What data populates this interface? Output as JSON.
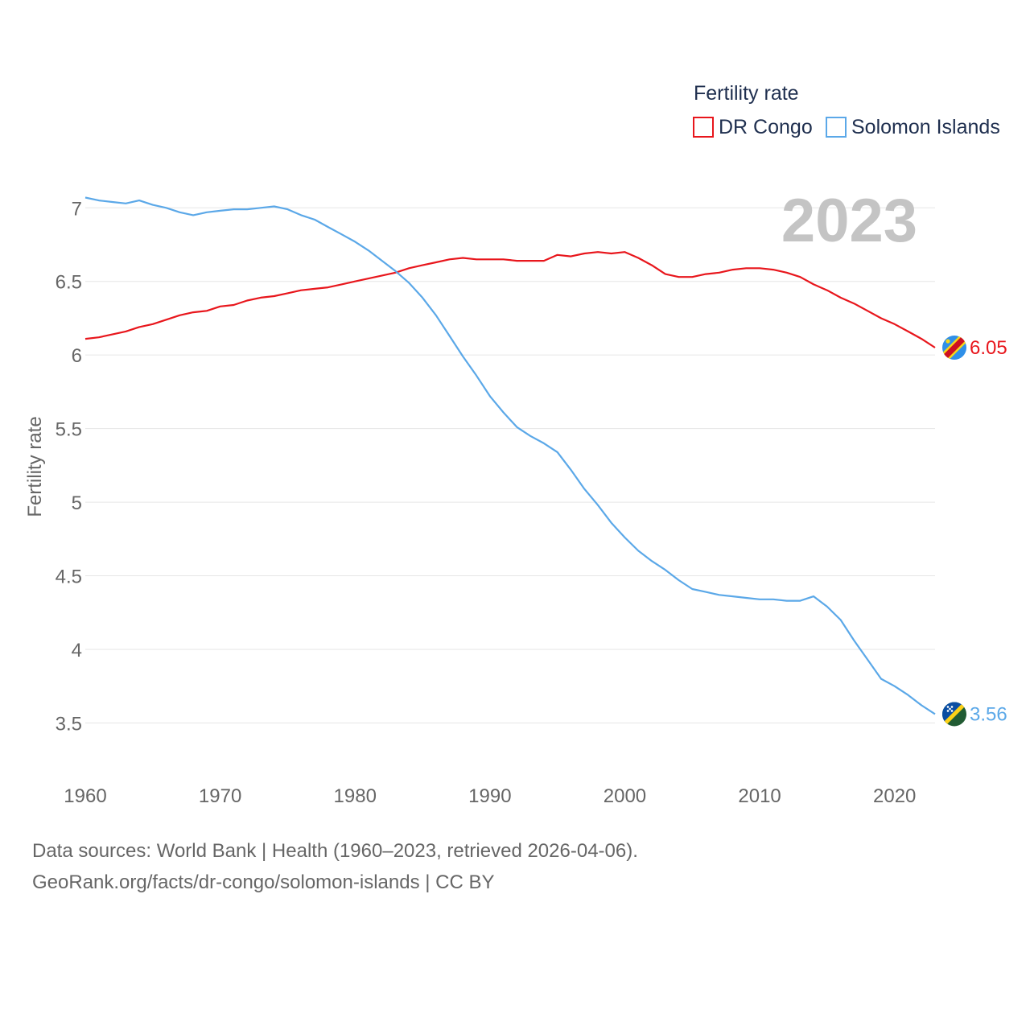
{
  "chart_data": {
    "type": "line",
    "title": "2023",
    "ylabel": "Fertility rate",
    "xlabel": "",
    "xlim": [
      1960,
      2023
    ],
    "ylim": [
      3.3,
      7.1
    ],
    "x_ticks": [
      "1960",
      "1970",
      "1980",
      "1990",
      "2000",
      "2010",
      "2020"
    ],
    "y_ticks": [
      "3.5",
      "4",
      "4.5",
      "5",
      "5.5",
      "6",
      "6.5",
      "7"
    ],
    "legend_title": "Fertility rate",
    "legend_position": "top-right",
    "colors": {
      "dr_congo": "#e8161c",
      "solomon_islands": "#5ba8e8"
    },
    "series": [
      {
        "name": "DR Congo",
        "end_label": "6.05",
        "values": [
          [
            1960,
            6.11
          ],
          [
            1961,
            6.12
          ],
          [
            1962,
            6.14
          ],
          [
            1963,
            6.16
          ],
          [
            1964,
            6.19
          ],
          [
            1965,
            6.21
          ],
          [
            1966,
            6.24
          ],
          [
            1967,
            6.27
          ],
          [
            1968,
            6.29
          ],
          [
            1969,
            6.3
          ],
          [
            1970,
            6.33
          ],
          [
            1971,
            6.34
          ],
          [
            1972,
            6.37
          ],
          [
            1973,
            6.39
          ],
          [
            1974,
            6.4
          ],
          [
            1975,
            6.42
          ],
          [
            1976,
            6.44
          ],
          [
            1977,
            6.45
          ],
          [
            1978,
            6.46
          ],
          [
            1979,
            6.48
          ],
          [
            1980,
            6.5
          ],
          [
            1981,
            6.52
          ],
          [
            1982,
            6.54
          ],
          [
            1983,
            6.56
          ],
          [
            1984,
            6.59
          ],
          [
            1985,
            6.61
          ],
          [
            1986,
            6.63
          ],
          [
            1987,
            6.65
          ],
          [
            1988,
            6.66
          ],
          [
            1989,
            6.65
          ],
          [
            1990,
            6.65
          ],
          [
            1991,
            6.65
          ],
          [
            1992,
            6.64
          ],
          [
            1993,
            6.64
          ],
          [
            1994,
            6.64
          ],
          [
            1995,
            6.68
          ],
          [
            1996,
            6.67
          ],
          [
            1997,
            6.69
          ],
          [
            1998,
            6.7
          ],
          [
            1999,
            6.69
          ],
          [
            2000,
            6.7
          ],
          [
            2001,
            6.66
          ],
          [
            2002,
            6.61
          ],
          [
            2003,
            6.55
          ],
          [
            2004,
            6.53
          ],
          [
            2005,
            6.53
          ],
          [
            2006,
            6.55
          ],
          [
            2007,
            6.56
          ],
          [
            2008,
            6.58
          ],
          [
            2009,
            6.59
          ],
          [
            2010,
            6.59
          ],
          [
            2011,
            6.58
          ],
          [
            2012,
            6.56
          ],
          [
            2013,
            6.53
          ],
          [
            2014,
            6.48
          ],
          [
            2015,
            6.44
          ],
          [
            2016,
            6.39
          ],
          [
            2017,
            6.35
          ],
          [
            2018,
            6.3
          ],
          [
            2019,
            6.25
          ],
          [
            2020,
            6.21
          ],
          [
            2021,
            6.16
          ],
          [
            2022,
            6.11
          ],
          [
            2023,
            6.05
          ]
        ]
      },
      {
        "name": "Solomon Islands",
        "end_label": "3.56",
        "values": [
          [
            1960,
            7.07
          ],
          [
            1961,
            7.05
          ],
          [
            1962,
            7.04
          ],
          [
            1963,
            7.03
          ],
          [
            1964,
            7.05
          ],
          [
            1965,
            7.02
          ],
          [
            1966,
            7.0
          ],
          [
            1967,
            6.97
          ],
          [
            1968,
            6.95
          ],
          [
            1969,
            6.97
          ],
          [
            1970,
            6.98
          ],
          [
            1971,
            6.99
          ],
          [
            1972,
            6.99
          ],
          [
            1973,
            7.0
          ],
          [
            1974,
            7.01
          ],
          [
            1975,
            6.99
          ],
          [
            1976,
            6.95
          ],
          [
            1977,
            6.92
          ],
          [
            1978,
            6.87
          ],
          [
            1979,
            6.82
          ],
          [
            1980,
            6.77
          ],
          [
            1981,
            6.71
          ],
          [
            1982,
            6.64
          ],
          [
            1983,
            6.57
          ],
          [
            1984,
            6.49
          ],
          [
            1985,
            6.39
          ],
          [
            1986,
            6.27
          ],
          [
            1987,
            6.13
          ],
          [
            1988,
            5.99
          ],
          [
            1989,
            5.86
          ],
          [
            1990,
            5.72
          ],
          [
            1991,
            5.61
          ],
          [
            1992,
            5.51
          ],
          [
            1993,
            5.45
          ],
          [
            1994,
            5.4
          ],
          [
            1995,
            5.34
          ],
          [
            1996,
            5.22
          ],
          [
            1997,
            5.09
          ],
          [
            1998,
            4.98
          ],
          [
            1999,
            4.86
          ],
          [
            2000,
            4.76
          ],
          [
            2001,
            4.67
          ],
          [
            2002,
            4.6
          ],
          [
            2003,
            4.54
          ],
          [
            2004,
            4.47
          ],
          [
            2005,
            4.41
          ],
          [
            2006,
            4.39
          ],
          [
            2007,
            4.37
          ],
          [
            2008,
            4.36
          ],
          [
            2009,
            4.35
          ],
          [
            2010,
            4.34
          ],
          [
            2011,
            4.34
          ],
          [
            2012,
            4.33
          ],
          [
            2013,
            4.33
          ],
          [
            2014,
            4.36
          ],
          [
            2015,
            4.29
          ],
          [
            2016,
            4.2
          ],
          [
            2017,
            4.06
          ],
          [
            2018,
            3.93
          ],
          [
            2019,
            3.8
          ],
          [
            2020,
            3.75
          ],
          [
            2021,
            3.69
          ],
          [
            2022,
            3.62
          ],
          [
            2023,
            3.56
          ]
        ]
      }
    ]
  },
  "footer": {
    "sources": "Data sources: World Bank | Health (1960–2023, retrieved 2026-04-06).",
    "credit": "GeoRank.org/facts/dr-congo/solomon-islands | CC BY"
  }
}
